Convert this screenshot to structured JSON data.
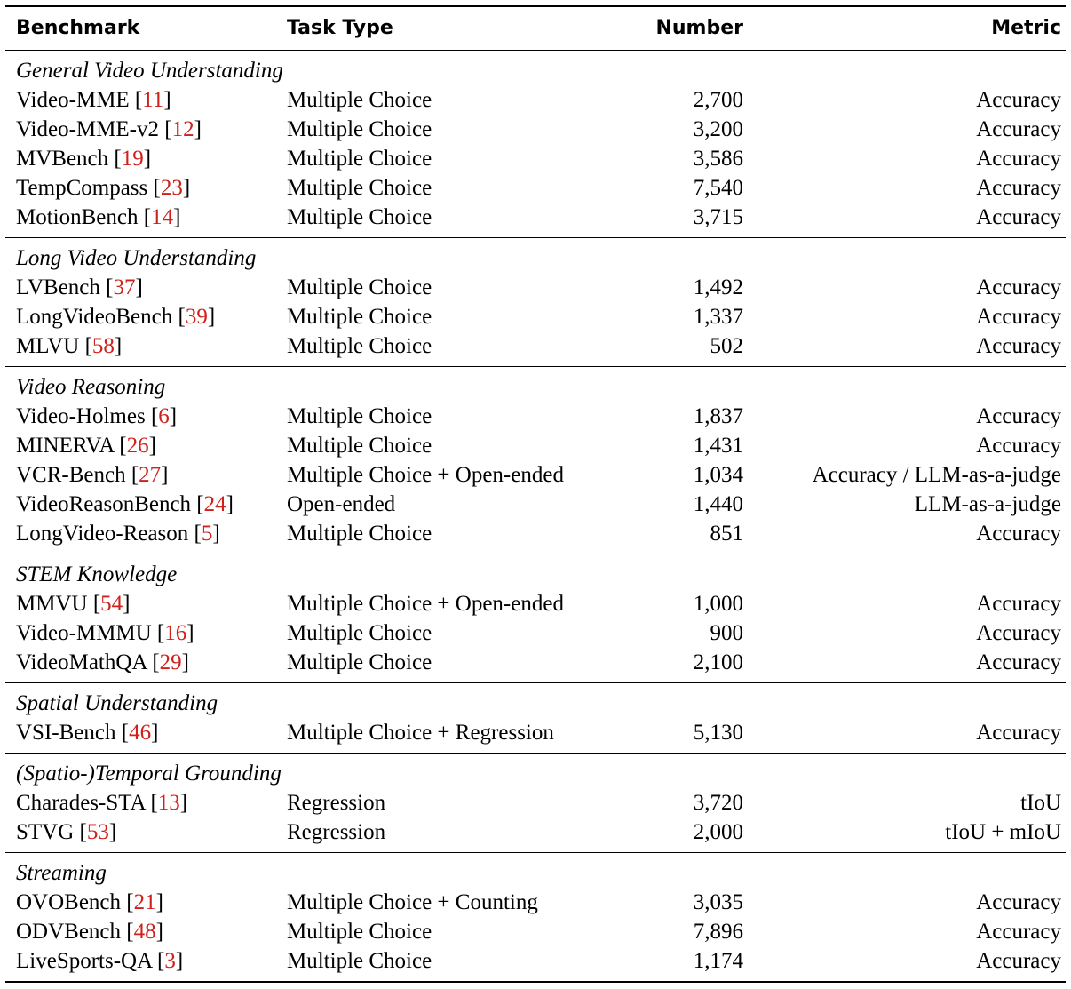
{
  "header": [
    "Benchmark",
    "Task Type",
    "Number",
    "Metric"
  ],
  "groups": [
    {
      "title": "General Video Understanding",
      "rows": [
        [
          "Video-MME [11]",
          "Multiple Choice",
          "2,700",
          "Accuracy"
        ],
        [
          "Video-MME-v2 [12]",
          "Multiple Choice",
          "3,200",
          "Accuracy"
        ],
        [
          "MVBench [19]",
          "Multiple Choice",
          "3,586",
          "Accuracy"
        ],
        [
          "TempCompass [23]",
          "Multiple Choice",
          "7,540",
          "Accuracy"
        ],
        [
          "MotionBench [14]",
          "Multiple Choice",
          "3,715",
          "Accuracy"
        ]
      ]
    },
    {
      "title": "Long Video Understanding",
      "rows": [
        [
          "LVBench [37]",
          "Multiple Choice",
          "1,492",
          "Accuracy"
        ],
        [
          "LongVideoBench [39]",
          "Multiple Choice",
          "1,337",
          "Accuracy"
        ],
        [
          "MLVU [58]",
          "Multiple Choice",
          "502",
          "Accuracy"
        ]
      ]
    },
    {
      "title": "Video Reasoning",
      "rows": [
        [
          "Video-Holmes [6]",
          "Multiple Choice",
          "1,837",
          "Accuracy"
        ],
        [
          "MINERVA [26]",
          "Multiple Choice",
          "1,431",
          "Accuracy"
        ],
        [
          "VCR-Bench [27]",
          "Multiple Choice + Open-ended",
          "1,034",
          "Accuracy / LLM-as-a-judge"
        ],
        [
          "VideoReasonBench [24]",
          "Open-ended",
          "1,440",
          "LLM-as-a-judge"
        ],
        [
          "LongVideo-Reason [5]",
          "Multiple Choice",
          "851",
          "Accuracy"
        ]
      ]
    },
    {
      "title": "STEM Knowledge",
      "rows": [
        [
          "MMVU [54]",
          "Multiple Choice + Open-ended",
          "1,000",
          "Accuracy"
        ],
        [
          "Video-MMMU [16]",
          "Multiple Choice",
          "900",
          "Accuracy"
        ],
        [
          "VideoMathQA [29]",
          "Multiple Choice",
          "2,100",
          "Accuracy"
        ]
      ]
    },
    {
      "title": "Spatial Understanding",
      "rows": [
        [
          "VSI-Bench [46]",
          "Multiple Choice + Regression",
          "5,130",
          "Accuracy"
        ]
      ]
    },
    {
      "title": "(Spatio-)Temporal Grounding",
      "rows": [
        [
          "Charades-STA [13]",
          "Regression",
          "3,720",
          "tIoU"
        ],
        [
          "STVG [53]",
          "Regression",
          "2,000",
          "tIoU + mIoU"
        ]
      ]
    },
    {
      "title": "Streaming",
      "rows": [
        [
          "OVOBench [21]",
          "Multiple Choice + Counting",
          "3,035",
          "Accuracy"
        ],
        [
          "ODVBench [48]",
          "Multiple Choice",
          "7,896",
          "Accuracy"
        ],
        [
          "LiveSports-QA [3]",
          "Multiple Choice",
          "1,174",
          "Accuracy"
        ]
      ]
    }
  ]
}
